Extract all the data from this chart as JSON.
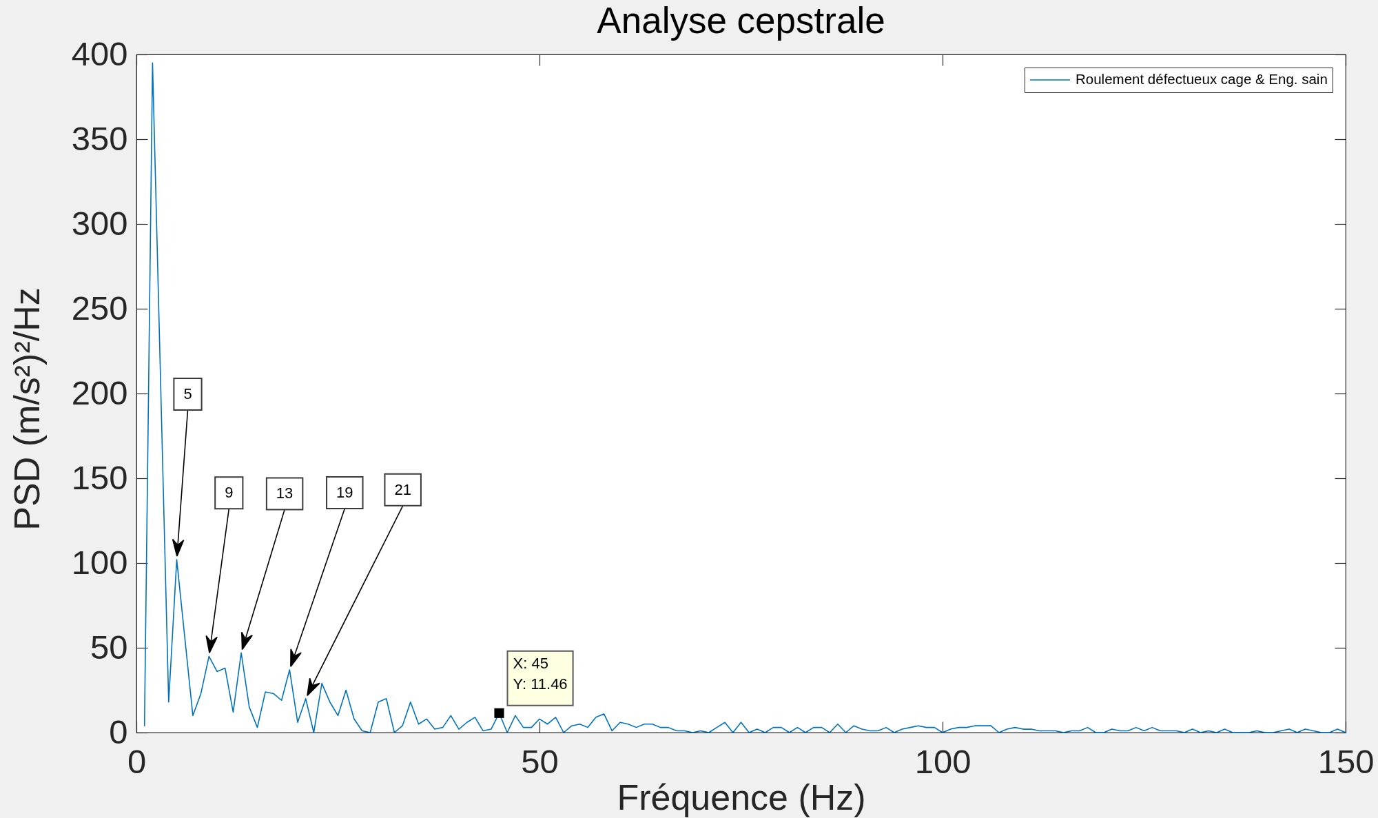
{
  "chart_data": {
    "type": "line",
    "title": "Analyse cepstrale",
    "xlabel": "Fréquence (Hz)",
    "ylabel": "PSD (m/s²)²/Hz",
    "x": [
      1,
      2,
      4,
      5,
      7,
      8,
      9,
      10,
      11,
      12,
      13,
      14,
      15,
      16,
      17,
      18,
      19,
      20,
      21,
      22,
      23,
      24,
      25,
      26,
      27,
      28,
      29,
      30,
      31,
      32,
      33,
      34,
      35,
      36,
      37,
      38,
      39,
      40,
      41,
      42,
      43,
      44,
      45,
      46,
      47,
      48,
      49,
      50,
      51,
      52,
      53,
      54,
      55,
      56,
      57,
      58,
      59,
      60,
      61,
      62,
      63,
      64,
      65,
      66,
      67,
      68,
      69,
      70,
      71,
      72,
      73,
      74,
      75,
      76,
      77,
      78,
      79,
      80,
      81,
      82,
      83,
      84,
      85,
      86,
      87,
      88,
      89,
      90,
      91,
      92,
      93,
      94,
      95,
      96,
      97,
      98,
      99,
      100,
      101,
      102,
      103,
      104,
      105,
      106,
      107,
      108,
      109,
      110,
      111,
      112,
      113,
      114,
      115,
      116,
      117,
      118,
      119,
      120,
      121,
      122,
      123,
      124,
      125,
      126,
      127,
      128,
      129,
      130,
      131,
      132,
      133,
      134,
      135,
      136,
      137,
      138,
      139,
      140,
      141,
      142,
      143,
      144,
      145,
      146,
      147,
      148,
      149,
      150
    ],
    "series": [
      {
        "name": "Roulement défectueux cage & Eng. sain",
        "color": "#0072bd",
        "values": [
          4,
          395,
          18,
          102,
          10,
          23,
          45,
          36,
          38,
          12,
          47,
          15,
          3,
          24,
          23,
          19,
          37,
          6,
          20,
          0,
          29,
          18,
          10,
          25,
          8,
          1,
          0,
          18,
          20,
          0,
          4,
          18,
          5,
          8,
          2,
          3,
          10,
          2,
          6,
          9,
          1,
          2,
          11.46,
          0,
          10,
          3,
          3,
          8,
          5,
          9,
          0,
          4,
          5,
          3,
          9,
          11,
          1,
          6,
          5,
          3,
          5,
          5,
          3,
          3,
          1,
          1,
          0,
          1,
          0,
          3,
          6,
          0,
          6,
          0,
          2,
          0,
          3,
          3,
          0,
          3,
          0,
          3,
          3,
          0,
          5,
          0,
          4,
          2,
          1,
          1,
          3,
          0,
          2,
          3,
          4,
          3,
          3,
          0,
          2,
          3,
          3,
          4,
          4,
          4,
          0,
          2,
          3,
          2,
          2,
          1,
          1,
          1,
          0,
          1,
          1,
          3,
          0,
          0,
          2,
          1,
          1,
          3,
          1,
          3,
          1,
          1,
          1,
          0,
          2,
          0,
          1,
          0,
          2,
          0,
          0,
          0,
          1,
          0,
          0,
          1,
          2,
          0,
          2,
          1,
          0,
          0,
          2,
          0
        ]
      }
    ],
    "xlim": [
      0,
      150
    ],
    "xticks": [
      0,
      50,
      100,
      150
    ],
    "ylim": [
      0,
      400
    ],
    "yticks": [
      0,
      50,
      100,
      150,
      200,
      250,
      300,
      350,
      400
    ],
    "legend": "top right",
    "annotations": [
      {
        "text": "5",
        "x": 5,
        "y": 102
      },
      {
        "text": "9",
        "x": 9,
        "y": 45
      },
      {
        "text": "13",
        "x": 13,
        "y": 47
      },
      {
        "text": "19",
        "x": 19,
        "y": 37
      },
      {
        "text": "21",
        "x": 21,
        "y": 20
      },
      {
        "text": "X: 45\nY: 11.46",
        "x": 45,
        "y": 11.46
      }
    ]
  }
}
